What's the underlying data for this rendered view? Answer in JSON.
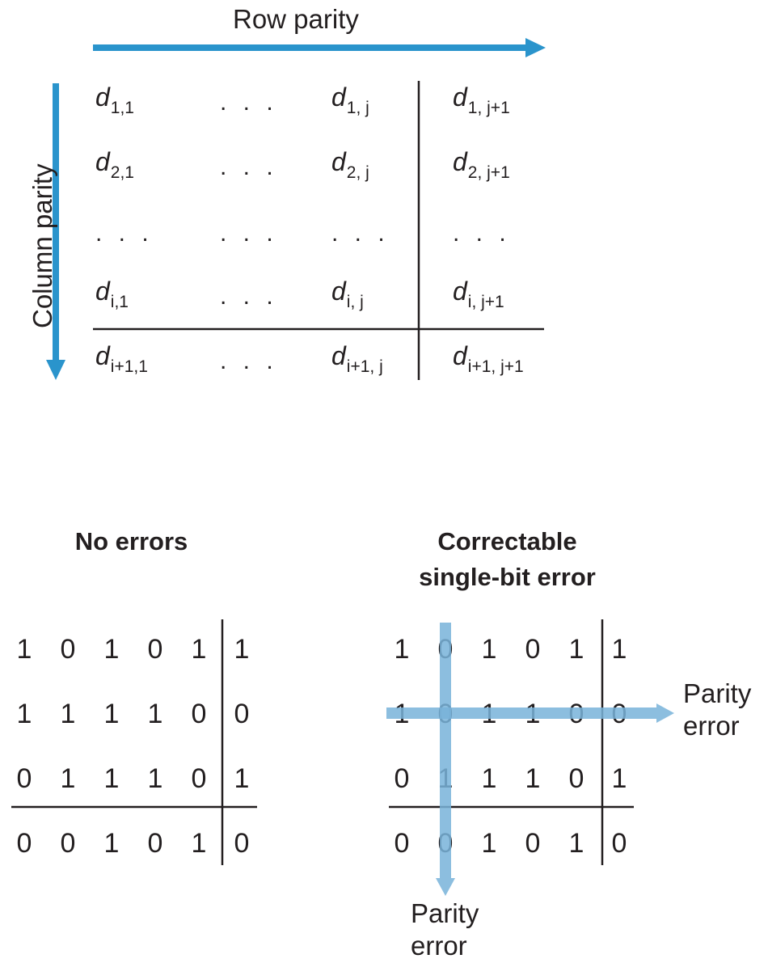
{
  "general": {
    "row_parity_label": "Row parity",
    "column_parity_label": "Column parity",
    "dots": ". . .",
    "rows": [
      [
        {
          "base": "d",
          "sub": "1,1"
        },
        {
          "dots": true
        },
        {
          "base": "d",
          "sub": "1, j"
        },
        {
          "base": "d",
          "sub": "1, j+1"
        }
      ],
      [
        {
          "base": "d",
          "sub": "2,1"
        },
        {
          "dots": true
        },
        {
          "base": "d",
          "sub": "2, j"
        },
        {
          "base": "d",
          "sub": "2, j+1"
        }
      ],
      [
        {
          "dots": true
        },
        {
          "dots": true
        },
        {
          "dots": true
        },
        {
          "dots": true
        }
      ],
      [
        {
          "base": "d",
          "sub": "i,1"
        },
        {
          "dots": true
        },
        {
          "base": "d",
          "sub": "i, j"
        },
        {
          "base": "d",
          "sub": "i, j+1"
        }
      ],
      [
        {
          "base": "d",
          "sub": "i+1,1"
        },
        {
          "dots": true
        },
        {
          "base": "d",
          "sub": "i+1, j"
        },
        {
          "base": "d",
          "sub": "i+1, j+1"
        }
      ]
    ]
  },
  "no_errors": {
    "title": "No errors",
    "rows": [
      [
        "1",
        "0",
        "1",
        "0",
        "1",
        "1"
      ],
      [
        "1",
        "1",
        "1",
        "1",
        "0",
        "0"
      ],
      [
        "0",
        "1",
        "1",
        "1",
        "0",
        "1"
      ],
      [
        "0",
        "0",
        "1",
        "0",
        "1",
        "0"
      ]
    ]
  },
  "correctable": {
    "title_line1": "Correctable",
    "title_line2": "single-bit error",
    "rows": [
      [
        "1",
        "0",
        "1",
        "0",
        "1",
        "1"
      ],
      [
        "1",
        "0",
        "1",
        "1",
        "0",
        "0"
      ],
      [
        "0",
        "1",
        "1",
        "1",
        "0",
        "1"
      ],
      [
        "0",
        "0",
        "1",
        "0",
        "1",
        "0"
      ]
    ],
    "row_error_label_line1": "Parity",
    "row_error_label_line2": "error",
    "col_error_label_line1": "Parity",
    "col_error_label_line2": "error"
  },
  "colors": {
    "arrow_dark": "#2a94cc",
    "arrow_light": "#79b3da",
    "text": "#231f20"
  }
}
